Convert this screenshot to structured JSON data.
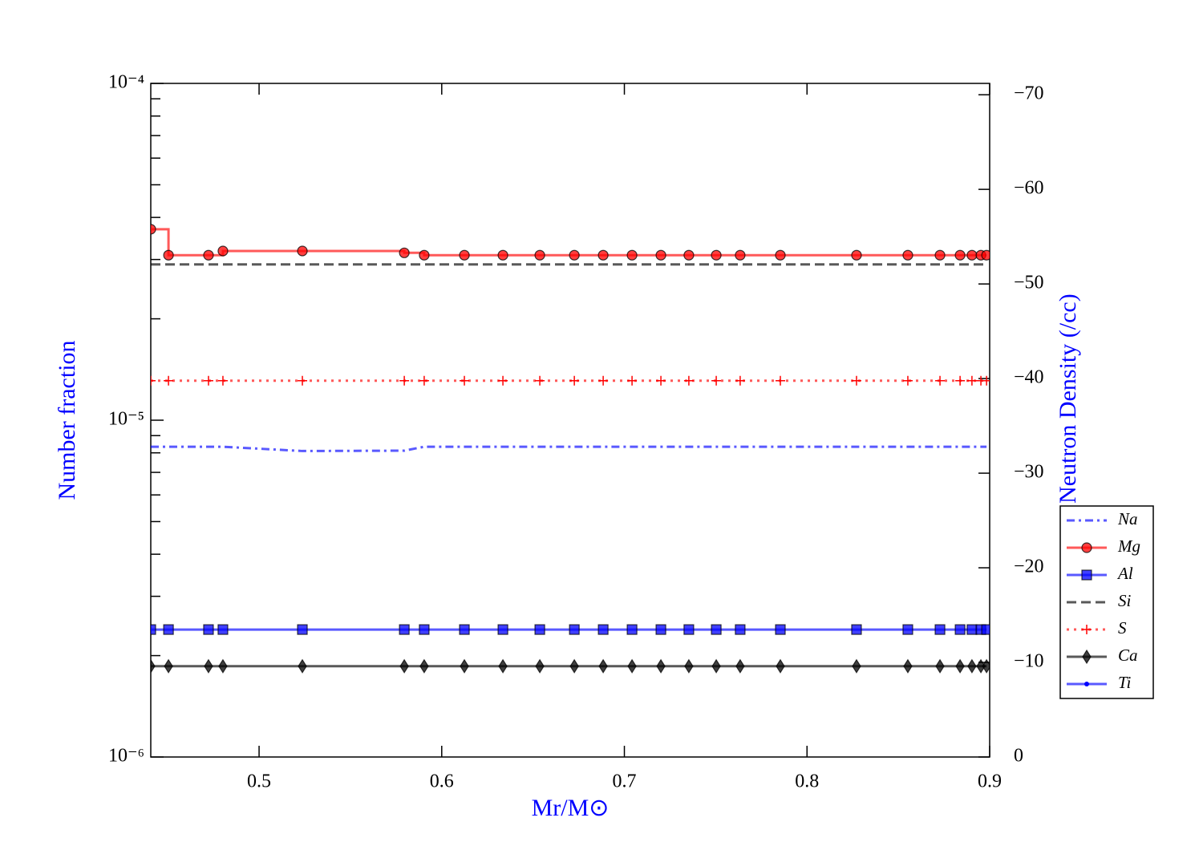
{
  "chart_data": {
    "type": "line",
    "xlabel": "Mr/M⊙",
    "ylabel": "Number fraction",
    "y2label": "Log Neutron Density (/cc)",
    "x": [
      0.4407,
      0.4504,
      0.4723,
      0.4802,
      0.5237,
      0.5795,
      0.5904,
      0.6124,
      0.6335,
      0.6537,
      0.6726,
      0.6884,
      0.7042,
      0.72,
      0.7353,
      0.7503,
      0.7634,
      0.7854,
      0.8271,
      0.8552,
      0.8728,
      0.8838,
      0.8903,
      0.8952,
      0.8983
    ],
    "series": [
      {
        "name": "Na",
        "color": "#0000ff",
        "linestyle": "dashdot",
        "marker": null,
        "values": [
          8.34e-06,
          8.34e-06,
          8.34e-06,
          8.34e-06,
          8.1e-06,
          8.12e-06,
          8.34e-06,
          8.34e-06,
          8.34e-06,
          8.34e-06,
          8.34e-06,
          8.34e-06,
          8.34e-06,
          8.34e-06,
          8.34e-06,
          8.34e-06,
          8.34e-06,
          8.34e-06,
          8.34e-06,
          8.34e-06,
          8.34e-06,
          8.34e-06,
          8.34e-06,
          8.34e-06,
          8.34e-06
        ]
      },
      {
        "name": "Mg",
        "color": "#ff0000",
        "linestyle": "solid",
        "marker": "o",
        "drawstyle": "steps-post",
        "values": [
          3.69e-05,
          3.09e-05,
          3.09e-05,
          3.18e-05,
          3.18e-05,
          3.14e-05,
          3.09e-05,
          3.09e-05,
          3.09e-05,
          3.09e-05,
          3.09e-05,
          3.09e-05,
          3.09e-05,
          3.09e-05,
          3.09e-05,
          3.09e-05,
          3.09e-05,
          3.09e-05,
          3.09e-05,
          3.09e-05,
          3.09e-05,
          3.09e-05,
          3.09e-05,
          3.09e-05,
          3.09e-05
        ]
      },
      {
        "name": "Al",
        "color": "#0000ff",
        "linestyle": "solid",
        "marker": "s",
        "values": [
          2.39e-06,
          2.39e-06,
          2.39e-06,
          2.39e-06,
          2.39e-06,
          2.39e-06,
          2.39e-06,
          2.39e-06,
          2.39e-06,
          2.39e-06,
          2.39e-06,
          2.39e-06,
          2.39e-06,
          2.39e-06,
          2.39e-06,
          2.39e-06,
          2.39e-06,
          2.39e-06,
          2.39e-06,
          2.39e-06,
          2.39e-06,
          2.39e-06,
          2.39e-06,
          2.39e-06,
          2.39e-06
        ]
      },
      {
        "name": "Si",
        "color": "#000000",
        "linestyle": "dashed",
        "marker": null,
        "values": [
          2.9e-05,
          2.9e-05,
          2.9e-05,
          2.9e-05,
          2.9e-05,
          2.9e-05,
          2.9e-05,
          2.9e-05,
          2.9e-05,
          2.9e-05,
          2.9e-05,
          2.9e-05,
          2.9e-05,
          2.9e-05,
          2.9e-05,
          2.9e-05,
          2.9e-05,
          2.9e-05,
          2.9e-05,
          2.9e-05,
          2.9e-05,
          2.9e-05,
          2.9e-05,
          2.9e-05,
          2.9e-05
        ]
      },
      {
        "name": "S",
        "color": "#ff0000",
        "linestyle": "dotted",
        "marker": "+",
        "values": [
          1.31e-05,
          1.31e-05,
          1.31e-05,
          1.31e-05,
          1.31e-05,
          1.31e-05,
          1.31e-05,
          1.31e-05,
          1.31e-05,
          1.31e-05,
          1.31e-05,
          1.31e-05,
          1.31e-05,
          1.31e-05,
          1.31e-05,
          1.31e-05,
          1.31e-05,
          1.31e-05,
          1.31e-05,
          1.31e-05,
          1.31e-05,
          1.31e-05,
          1.31e-05,
          1.31e-05,
          1.31e-05
        ]
      },
      {
        "name": "Ca",
        "color": "#000000",
        "linestyle": "solid",
        "marker": "d",
        "values": [
          1.86e-06,
          1.86e-06,
          1.86e-06,
          1.86e-06,
          1.86e-06,
          1.86e-06,
          1.86e-06,
          1.86e-06,
          1.86e-06,
          1.86e-06,
          1.86e-06,
          1.86e-06,
          1.86e-06,
          1.86e-06,
          1.86e-06,
          1.86e-06,
          1.86e-06,
          1.86e-06,
          1.86e-06,
          1.86e-06,
          1.86e-06,
          1.86e-06,
          1.86e-06,
          1.86e-06,
          1.86e-06
        ]
      },
      {
        "name": "Ti",
        "color": "#0000ff",
        "linestyle": "solid",
        "marker": ".",
        "values": [
          null,
          null,
          null,
          null,
          null,
          null,
          null,
          null,
          null,
          null,
          null,
          null,
          null,
          null,
          null,
          null,
          null,
          null,
          null,
          null,
          null,
          null,
          null,
          null,
          null
        ]
      }
    ],
    "xlim": [
      0.4407,
      0.9
    ],
    "xticks": [
      0.5,
      0.6,
      0.7,
      0.8,
      0.9
    ],
    "yscale": "log",
    "ylim": [
      1e-06,
      0.0001
    ],
    "yticks": [
      {
        "value": 1e-06,
        "label": "10⁻⁶"
      },
      {
        "value": 1e-05,
        "label": "10⁻⁵"
      },
      {
        "value": 0.0001,
        "label": "10⁻⁴"
      }
    ],
    "yminorticks": [
      2e-06,
      3e-06,
      4e-06,
      5e-06,
      6e-06,
      7e-06,
      8e-06,
      9e-06,
      2e-05,
      3e-05,
      4e-05,
      5e-05,
      6e-05,
      7e-05,
      8e-05,
      9e-05
    ],
    "y2lim": [
      0,
      -71.2
    ],
    "y2ticks": [
      0,
      {
        "value": -10,
        "label": "−10"
      },
      {
        "value": -20,
        "label": "−20"
      },
      {
        "value": -30,
        "label": "−30"
      },
      {
        "value": -40,
        "label": "−40"
      },
      {
        "value": -50,
        "label": "−50"
      },
      {
        "value": -60,
        "label": "−60"
      },
      {
        "value": -70,
        "label": "−70"
      }
    ],
    "legend": "lower right",
    "grid": false
  }
}
